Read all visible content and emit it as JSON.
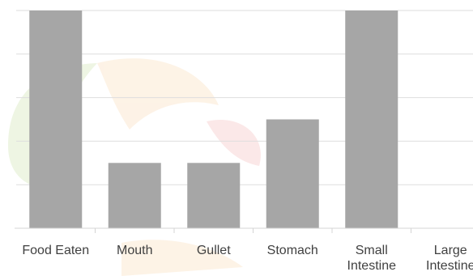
{
  "chart_data": {
    "type": "bar",
    "categories": [
      "Food Eaten",
      "Mouth",
      "Gullet",
      "Stomach",
      "Small Intestine",
      "Large Intestine"
    ],
    "category_lines": [
      [
        "Food Eaten"
      ],
      [
        "Mouth"
      ],
      [
        "Gullet"
      ],
      [
        "Stomach"
      ],
      [
        "Small",
        "Intestine"
      ],
      [
        "Large",
        "Intestine"
      ]
    ],
    "values": [
      5,
      1.5,
      1.5,
      2.5,
      5,
      0
    ],
    "ylim": [
      0,
      5
    ],
    "title": "",
    "xlabel": "",
    "ylabel": "",
    "grid": true,
    "legend": "none",
    "colors": {
      "bar": "#a6a6a6",
      "grid": "#dedede",
      "axis": "#d4d4d4",
      "tick_text": "#404040",
      "watermark_green": "#cfe6b3",
      "watermark_orange": "#fbe2c3",
      "watermark_red": "#f6cccc"
    }
  }
}
